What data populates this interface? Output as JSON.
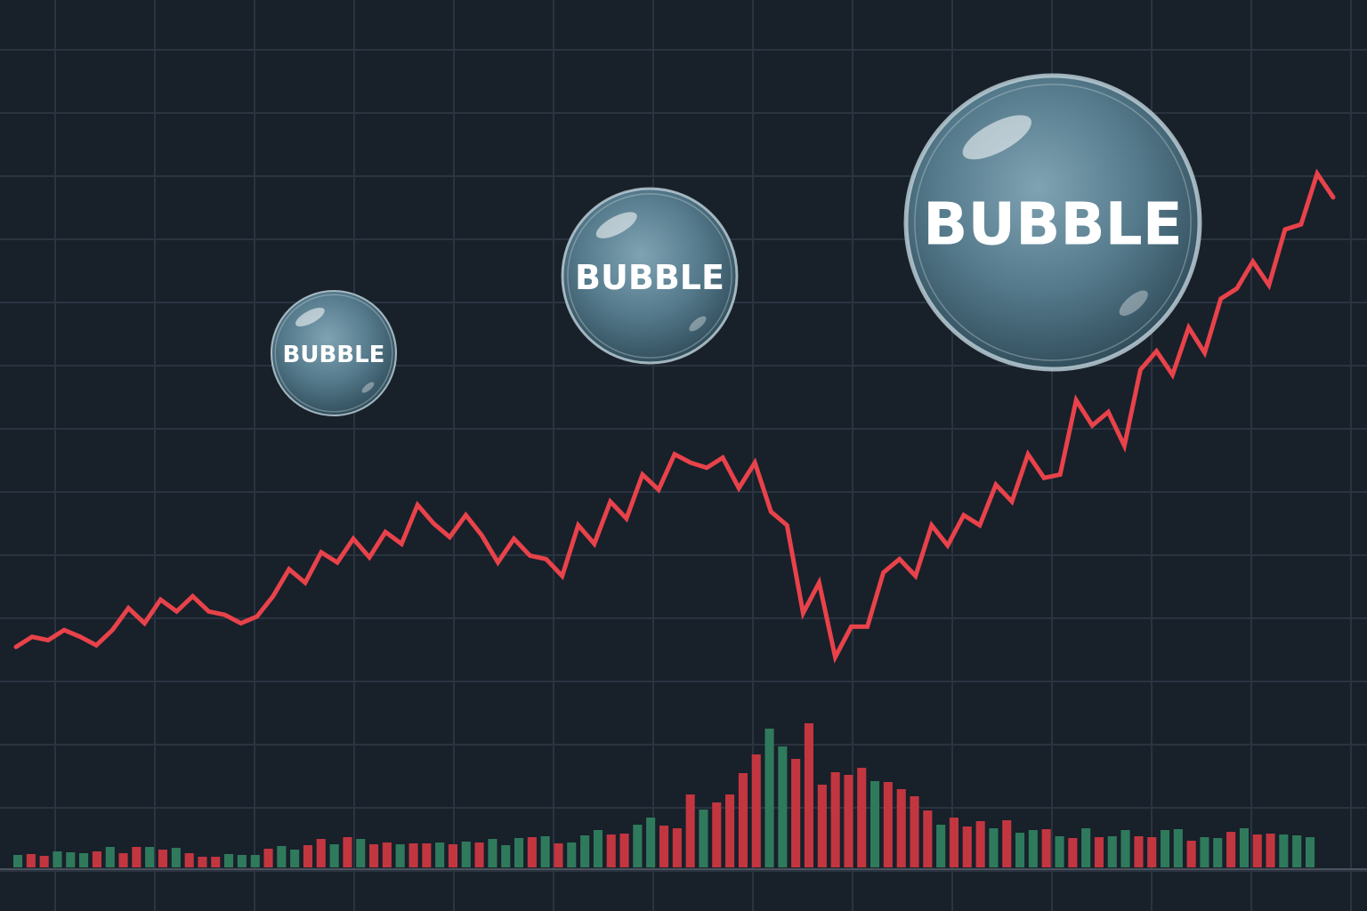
{
  "colors": {
    "background": "#18202a",
    "grid": "#2a3440",
    "price_line": "#e8424a",
    "volume_up": "#2f7a5c",
    "volume_down": "#c23640",
    "bubble_fill": "#5f8596",
    "bubble_edge": "#b9cbd3",
    "bubble_text": "#ffffff",
    "baseline": "#4a525c"
  },
  "bubbles": [
    {
      "label": "BUBBLE",
      "size": "small"
    },
    {
      "label": "BUBBLE",
      "size": "medium"
    },
    {
      "label": "BUBBLE",
      "size": "large"
    }
  ],
  "chart_data": {
    "type": "line",
    "title": "",
    "xlabel": "",
    "ylabel": "",
    "grid": true,
    "legend": "none",
    "series": [
      {
        "values": [
          12,
          18,
          16,
          22,
          18,
          13,
          22,
          35,
          26,
          40,
          33,
          42,
          33,
          31,
          26,
          30,
          42,
          58,
          50,
          68,
          62,
          76,
          65,
          80,
          73,
          96,
          85,
          77,
          90,
          78,
          62,
          76,
          66,
          64,
          54,
          84,
          73,
          98,
          88,
          114,
          105,
          126,
          121,
          118,
          124,
          106,
          121,
          92,
          84,
          32,
          50,
          6,
          24,
          24,
          56,
          64,
          54,
          84,
          72,
          90,
          84,
          108,
          98,
          126,
          112,
          114,
          158,
          143,
          151,
          131,
          176,
          187,
          173,
          201,
          186,
          218,
          224,
          240,
          226,
          259,
          262,
          292,
          278
        ]
      },
      {
        "type": "bar",
        "up_down": [
          "up",
          "down",
          "down",
          "up",
          "up",
          "up",
          "down",
          "up",
          "down",
          "down",
          "up",
          "down",
          "up",
          "down",
          "down",
          "down",
          "up",
          "up",
          "up",
          "down",
          "up",
          "up",
          "down",
          "down",
          "up",
          "down",
          "up",
          "down",
          "down",
          "up",
          "down",
          "down",
          "up",
          "down",
          "up",
          "down",
          "up",
          "up",
          "up",
          "down",
          "up",
          "down",
          "up",
          "up",
          "up",
          "down",
          "down",
          "up",
          "up",
          "down",
          "down",
          "down",
          "up",
          "down",
          "down",
          "down",
          "down",
          "up",
          "up",
          "down",
          "down",
          "down",
          "down",
          "down",
          "down",
          "up",
          "down",
          "down",
          "down",
          "down",
          "up",
          "down",
          "down",
          "down",
          "up",
          "down",
          "up",
          "up",
          "down",
          "up",
          "down",
          "up",
          "down",
          "up",
          "up",
          "down",
          "down",
          "up",
          "up",
          "down",
          "up",
          "up",
          "down",
          "up",
          "down",
          "down",
          "up",
          "up",
          "up"
        ],
        "values": [
          14,
          15,
          13,
          18,
          17,
          16,
          18,
          23,
          16,
          23,
          23,
          20,
          22,
          16,
          12,
          12,
          15,
          14,
          14,
          21,
          24,
          20,
          25,
          32,
          26,
          34,
          32,
          26,
          28,
          26,
          27,
          27,
          28,
          26,
          29,
          28,
          32,
          25,
          33,
          34,
          35,
          27,
          28,
          36,
          42,
          37,
          38,
          48,
          56,
          47,
          44,
          82,
          65,
          73,
          82,
          106,
          127,
          156,
          136,
          122,
          162,
          93,
          107,
          104,
          112,
          97,
          96,
          88,
          80,
          64,
          48,
          56,
          46,
          52,
          44,
          53,
          39,
          42,
          43,
          35,
          33,
          44,
          34,
          35,
          42,
          35,
          34,
          42,
          43,
          30,
          34,
          33,
          40,
          44,
          37,
          38,
          37,
          36,
          34
        ]
      }
    ]
  }
}
